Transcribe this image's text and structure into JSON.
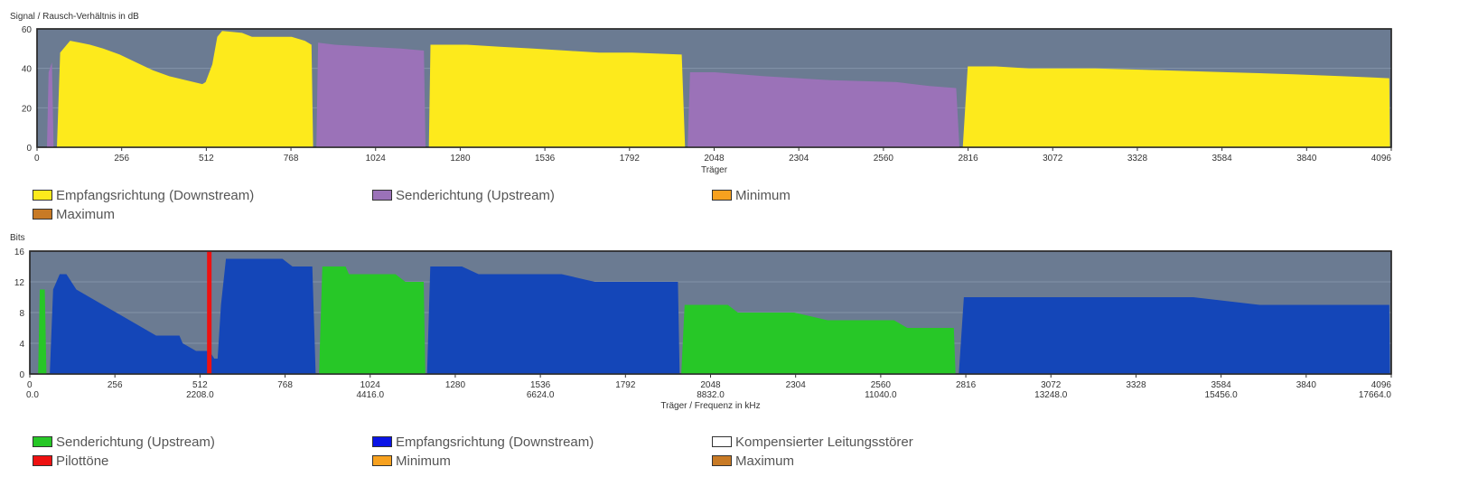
{
  "colors": {
    "plot_bg": "#6b7b92",
    "grid": "#8393a8",
    "downstream_snr": "#fdea1c",
    "upstream_snr": "#9b72b8",
    "minimum": "#f7a11f",
    "maximum": "#c87a25",
    "upstream_bits": "#27c727",
    "downstream_bits": "#1446b8",
    "pilot": "#ee1111",
    "compensated": "#ffffff"
  },
  "chart_data": [
    {
      "type": "area",
      "ylabel": "Signal / Rausch-Verhältnis in dB",
      "xlabel": "Träger",
      "xlim": [
        0,
        4096
      ],
      "ylim": [
        0,
        60
      ],
      "yticks": [
        "0",
        "20",
        "40",
        "60"
      ],
      "xticks": [
        "0",
        "256",
        "512",
        "768",
        "1024",
        "1280",
        "1536",
        "1792",
        "2048",
        "2304",
        "2560",
        "2816",
        "3072",
        "3328",
        "3584",
        "3840",
        "4096"
      ],
      "legend": [
        {
          "name": "Empfangsrichtung (Downstream)",
          "color": "#fdea1c"
        },
        {
          "name": "Senderichtung (Upstream)",
          "color": "#9b72b8"
        },
        {
          "name": "Minimum",
          "color": "#f7a11f"
        },
        {
          "name": "Maximum",
          "color": "#c87a25"
        }
      ],
      "series": [
        {
          "name": "Senderichtung (Upstream)",
          "color": "#9b72b8",
          "points": [
            [
              30,
              0
            ],
            [
              35,
              38
            ],
            [
              45,
              43
            ],
            [
              50,
              0
            ]
          ]
        },
        {
          "name": "Empfangsrichtung (Downstream)",
          "color": "#fdea1c",
          "points": [
            [
              60,
              0
            ],
            [
              70,
              48
            ],
            [
              90,
              52
            ],
            [
              100,
              54
            ],
            [
              130,
              53
            ],
            [
              160,
              52
            ],
            [
              200,
              50
            ],
            [
              250,
              47
            ],
            [
              300,
              43
            ],
            [
              350,
              39
            ],
            [
              400,
              36
            ],
            [
              450,
              34
            ],
            [
              500,
              32
            ],
            [
              510,
              33
            ],
            [
              530,
              42
            ],
            [
              545,
              56
            ],
            [
              560,
              59
            ],
            [
              620,
              58
            ],
            [
              650,
              56
            ],
            [
              700,
              56
            ],
            [
              770,
              56
            ],
            [
              810,
              54
            ],
            [
              830,
              52
            ],
            [
              835,
              0
            ]
          ]
        },
        {
          "name": "Senderichtung (Upstream)",
          "color": "#9b72b8",
          "points": [
            [
              845,
              0
            ],
            [
              850,
              53
            ],
            [
              900,
              52
            ],
            [
              1000,
              51
            ],
            [
              1100,
              50
            ],
            [
              1170,
              49
            ],
            [
              1175,
              0
            ]
          ]
        },
        {
          "name": "Empfangsrichtung (Downstream)",
          "color": "#fdea1c",
          "points": [
            [
              1185,
              0
            ],
            [
              1190,
              52
            ],
            [
              1300,
              52
            ],
            [
              1400,
              51
            ],
            [
              1500,
              50
            ],
            [
              1600,
              49
            ],
            [
              1700,
              48
            ],
            [
              1800,
              48
            ],
            [
              1950,
              47
            ],
            [
              1960,
              0
            ]
          ]
        },
        {
          "name": "Senderichtung (Upstream)",
          "color": "#9b72b8",
          "points": [
            [
              1968,
              0
            ],
            [
              1975,
              38
            ],
            [
              2050,
              38
            ],
            [
              2200,
              36
            ],
            [
              2400,
              34
            ],
            [
              2600,
              33
            ],
            [
              2700,
              31
            ],
            [
              2780,
              30
            ],
            [
              2790,
              0
            ]
          ]
        },
        {
          "name": "Empfangsrichtung (Downstream)",
          "color": "#fdea1c",
          "points": [
            [
              2800,
              0
            ],
            [
              2815,
              41
            ],
            [
              2900,
              41
            ],
            [
              3000,
              40
            ],
            [
              3200,
              40
            ],
            [
              3400,
              39
            ],
            [
              3600,
              38
            ],
            [
              3800,
              37
            ],
            [
              3950,
              36
            ],
            [
              4090,
              35
            ],
            [
              4092,
              0
            ]
          ]
        }
      ]
    },
    {
      "type": "area",
      "ylabel": "Bits",
      "xlabel": "Träger / Frequenz in kHz",
      "xlim": [
        0,
        4096
      ],
      "ylim": [
        0,
        16
      ],
      "yticks": [
        "0",
        "4",
        "8",
        "12",
        "16"
      ],
      "xticks": [
        "0",
        "256",
        "512",
        "768",
        "1024",
        "1280",
        "1536",
        "1792",
        "2048",
        "2304",
        "2560",
        "2816",
        "3072",
        "3328",
        "3584",
        "3840",
        "4096"
      ],
      "xticks_freq": [
        "0.0",
        "2208.0",
        "4416.0",
        "6624.0",
        "8832.0",
        "11040.0",
        "13248.0",
        "15456.0",
        "17664.0"
      ],
      "legend": [
        {
          "name": "Senderichtung (Upstream)",
          "color": "#27c727"
        },
        {
          "name": "Empfangsrichtung (Downstream)",
          "color": "#0a14e6"
        },
        {
          "name": "Kompensierter Leitungsstörer",
          "color": "#ffffff"
        },
        {
          "name": "Pilottöne",
          "color": "#ee1111"
        },
        {
          "name": "Minimum",
          "color": "#f7a11f"
        },
        {
          "name": "Maximum",
          "color": "#c87a25"
        }
      ],
      "series": [
        {
          "name": "Senderichtung (Upstream)",
          "color": "#27c727",
          "points": [
            [
              25,
              0
            ],
            [
              30,
              11
            ],
            [
              45,
              11
            ],
            [
              50,
              0
            ]
          ]
        },
        {
          "name": "Empfangsrichtung (Downstream)",
          "color": "#1446b8",
          "points": [
            [
              60,
              0
            ],
            [
              70,
              11
            ],
            [
              90,
              13
            ],
            [
              110,
              13
            ],
            [
              140,
              11
            ],
            [
              180,
              10
            ],
            [
              220,
              9
            ],
            [
              260,
              8
            ],
            [
              300,
              7
            ],
            [
              340,
              6
            ],
            [
              380,
              5
            ],
            [
              420,
              5
            ],
            [
              450,
              5
            ],
            [
              460,
              4
            ],
            [
              500,
              3
            ],
            [
              540,
              3
            ],
            [
              555,
              2
            ],
            [
              565,
              2
            ],
            [
              575,
              9
            ],
            [
              590,
              15
            ],
            [
              700,
              15
            ],
            [
              760,
              15
            ],
            [
              790,
              14
            ],
            [
              850,
              14
            ],
            [
              860,
              0
            ]
          ]
        },
        {
          "name": "Senderichtung (Upstream)",
          "color": "#27c727",
          "points": [
            [
              870,
              0
            ],
            [
              880,
              14
            ],
            [
              950,
              14
            ],
            [
              960,
              13
            ],
            [
              1050,
              13
            ],
            [
              1100,
              13
            ],
            [
              1130,
              12
            ],
            [
              1185,
              12
            ],
            [
              1190,
              0
            ]
          ]
        },
        {
          "name": "Empfangsrichtung (Downstream)",
          "color": "#1446b8",
          "points": [
            [
              1195,
              0
            ],
            [
              1205,
              14
            ],
            [
              1300,
              14
            ],
            [
              1350,
              13
            ],
            [
              1600,
              13
            ],
            [
              1700,
              12
            ],
            [
              1900,
              12
            ],
            [
              1950,
              12
            ],
            [
              1955,
              0
            ]
          ]
        },
        {
          "name": "Senderichtung (Upstream)",
          "color": "#27c727",
          "points": [
            [
              1960,
              0
            ],
            [
              1970,
              9
            ],
            [
              2100,
              9
            ],
            [
              2130,
              8
            ],
            [
              2300,
              8
            ],
            [
              2400,
              7
            ],
            [
              2600,
              7
            ],
            [
              2640,
              6
            ],
            [
              2780,
              6
            ],
            [
              2785,
              0
            ]
          ]
        },
        {
          "name": "Empfangsrichtung (Downstream)",
          "color": "#1446b8",
          "points": [
            [
              2795,
              0
            ],
            [
              2810,
              10
            ],
            [
              2900,
              10
            ],
            [
              3200,
              10
            ],
            [
              3500,
              10
            ],
            [
              3700,
              9
            ],
            [
              3900,
              9
            ],
            [
              4090,
              9
            ],
            [
              4092,
              0
            ]
          ]
        }
      ],
      "pilot_tones": [
        540
      ]
    }
  ]
}
